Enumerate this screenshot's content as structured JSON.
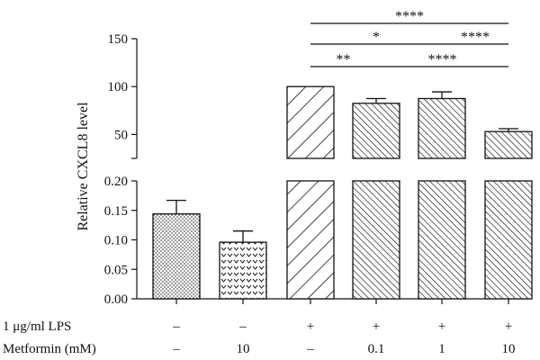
{
  "chart_data": {
    "type": "bar",
    "title": "",
    "ylabel": "Relative CXCL8 level",
    "xlabel": "",
    "broken_axis": true,
    "lower_ylim": [
      0,
      0.2
    ],
    "lower_yticks": [
      "0.00",
      "0.05",
      "0.10",
      "0.15",
      "0.20"
    ],
    "upper_ylim": [
      25,
      150
    ],
    "upper_yticks": [
      "50",
      "100",
      "150"
    ],
    "bars": [
      {
        "value": 0.144,
        "error": 0.023,
        "pattern": "dots"
      },
      {
        "value": 0.096,
        "error": 0.019,
        "pattern": "chevrons"
      },
      {
        "value": 100,
        "error": 0,
        "pattern": "wide-hatch"
      },
      {
        "value": 82.5,
        "error": 5,
        "pattern": "dense-hatch"
      },
      {
        "value": 87.5,
        "error": 7,
        "pattern": "dense-hatch"
      },
      {
        "value": 53,
        "error": 3,
        "pattern": "dense-hatch"
      }
    ],
    "conditions": [
      {
        "label": "1 μg/ml LPS",
        "values": [
          "–",
          "–",
          "+",
          "+",
          "+",
          "+"
        ]
      },
      {
        "label": "Metformin (mM)",
        "values": [
          "–",
          "10",
          "–",
          "0.1",
          "1",
          "10"
        ]
      }
    ],
    "significance": [
      {
        "from": 2,
        "to": 5,
        "label": "****"
      },
      {
        "from": 2,
        "to": 4,
        "label": "*"
      },
      {
        "from": 4,
        "to": 5,
        "label": "****"
      },
      {
        "from": 2,
        "to": 3,
        "label": "**"
      },
      {
        "from": 3,
        "to": 5,
        "label": "****"
      }
    ]
  }
}
